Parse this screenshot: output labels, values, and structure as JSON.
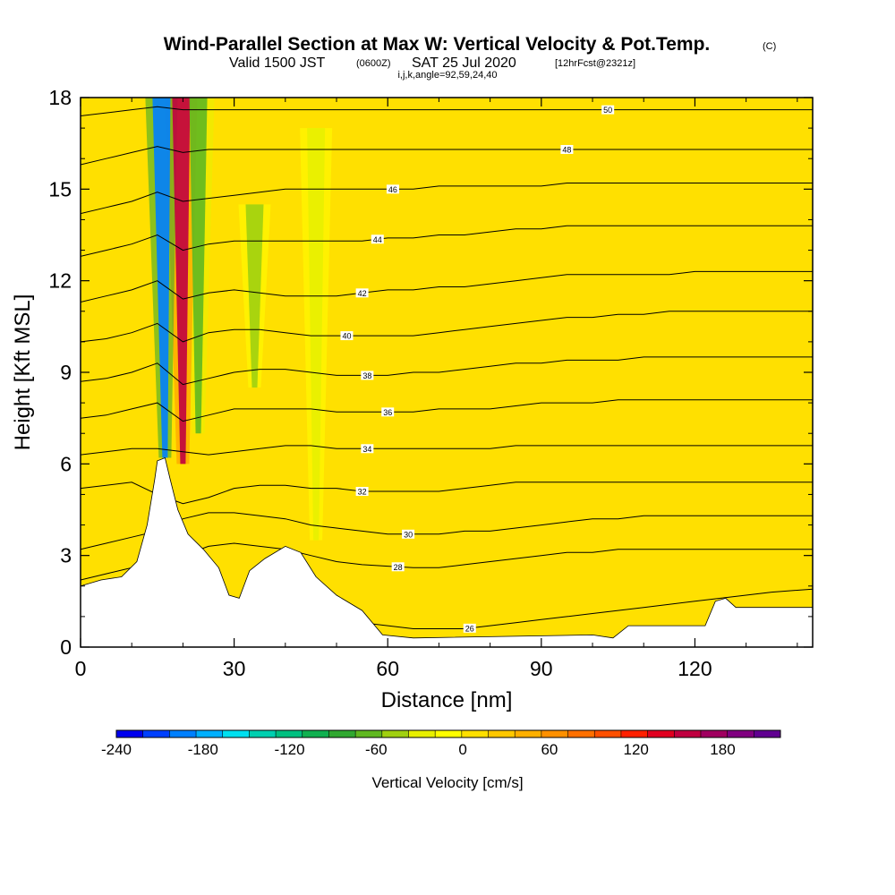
{
  "title": {
    "main": "Wind-Parallel Section at Max W: Vertical Velocity & Pot.Temp.",
    "main_units": "(C)",
    "line2_prefix": "Valid 1500 JST",
    "line2_zulu": "(0600Z)",
    "line2_date": "SAT 25 Jul 2020",
    "line2_fcst": "[12hrFcst@2321z]",
    "line3": "i,j,k,angle=92,59,24,40"
  },
  "chart_data": {
    "type": "heatmap",
    "xlabel": "Distance [nm]",
    "ylabel": "Height [Kft MSL]",
    "xlim": [
      0,
      143
    ],
    "ylim": [
      0,
      18
    ],
    "x_ticks": [
      0,
      30,
      60,
      90,
      120
    ],
    "y_ticks": [
      0,
      3,
      6,
      9,
      12,
      15,
      18
    ],
    "x_tick_labels": [
      "0",
      "30",
      "60",
      "90",
      "120"
    ],
    "y_tick_labels": [
      "0",
      "3",
      "6",
      "9",
      "12",
      "15",
      "18"
    ],
    "grid": false,
    "colorbar": {
      "title": "Vertical Velocity [cm/s]",
      "min": -240,
      "max": 220,
      "tick_values": [
        -240,
        -180,
        -120,
        -60,
        0,
        60,
        120,
        180
      ],
      "tick_labels": [
        "-240",
        "-180",
        "-120",
        "-60",
        "0",
        "60",
        "120",
        "180"
      ],
      "colors": [
        "#0000ee",
        "#0040ff",
        "#0080ff",
        "#00b0ff",
        "#00e0f0",
        "#00d0b0",
        "#00c080",
        "#10b050",
        "#30a830",
        "#60b820",
        "#a0d010",
        "#e8f000",
        "#ffff00",
        "#ffe000",
        "#ffc800",
        "#ffb000",
        "#ff9000",
        "#ff7000",
        "#ff5000",
        "#ff2000",
        "#e00020",
        "#c00040",
        "#a00060",
        "#800080",
        "#600090"
      ]
    },
    "background_velocity_cm_s": 5,
    "velocity_features": [
      {
        "name": "downdraft core",
        "x": 16.5,
        "y_bottom": 6.2,
        "y_top": 18,
        "value": -200
      },
      {
        "name": "updraft core",
        "x": 20,
        "y_bottom": 6.0,
        "y_top": 18,
        "value": 160
      },
      {
        "name": "downdraft band",
        "x": 23,
        "y_bottom": 7,
        "y_top": 18,
        "value": -60
      },
      {
        "name": "downdraft band",
        "x": 34,
        "y_bottom": 8.5,
        "y_top": 14.5,
        "value": -40
      },
      {
        "name": "downdraft band",
        "x": 46,
        "y_bottom": 3.5,
        "y_top": 17,
        "value": -30
      }
    ],
    "terrain_height_kft": [
      [
        0,
        2.0
      ],
      [
        4,
        2.2
      ],
      [
        8,
        2.3
      ],
      [
        11,
        2.8
      ],
      [
        13,
        4.0
      ],
      [
        14.5,
        5.5
      ],
      [
        15,
        6.1
      ],
      [
        16.5,
        6.2
      ],
      [
        17.5,
        5.5
      ],
      [
        19,
        4.5
      ],
      [
        21,
        3.7
      ],
      [
        24,
        3.2
      ],
      [
        27,
        2.6
      ],
      [
        29,
        1.7
      ],
      [
        31,
        1.6
      ],
      [
        33,
        2.5
      ],
      [
        36,
        2.9
      ],
      [
        40,
        3.3
      ],
      [
        43,
        3.1
      ],
      [
        46,
        2.3
      ],
      [
        50,
        1.7
      ],
      [
        55,
        1.2
      ],
      [
        59,
        0.4
      ],
      [
        65,
        0.3
      ],
      [
        100,
        0.4
      ],
      [
        104,
        0.3
      ],
      [
        107,
        0.7
      ],
      [
        122,
        0.7
      ],
      [
        124,
        1.5
      ],
      [
        126,
        1.6
      ],
      [
        128,
        1.3
      ],
      [
        135,
        1.3
      ],
      [
        143,
        1.3
      ]
    ],
    "pot_temp_contours": [
      {
        "value": 26,
        "label": "26",
        "label_x": 76,
        "y": [
          0.4,
          0.5,
          0.6,
          0.7,
          0.9,
          1.15,
          1.3,
          1.4,
          1.35,
          1.2,
          1.0,
          0.8,
          0.7,
          0.6,
          0.6,
          0.6,
          0.7,
          0.8,
          0.9,
          1.0,
          1.1,
          1.2,
          1.3,
          1.4,
          1.5,
          1.6,
          1.7,
          1.8,
          1.9
        ]
      },
      {
        "value": 28,
        "label": "28",
        "label_x": 62,
        "y": [
          2.2,
          2.4,
          2.6,
          2.8,
          3.0,
          3.3,
          3.4,
          3.3,
          3.2,
          3.0,
          2.8,
          2.7,
          2.65,
          2.6,
          2.6,
          2.7,
          2.8,
          2.9,
          3.0,
          3.1,
          3.1,
          3.2,
          3.2,
          3.2,
          3.2,
          3.2,
          3.2,
          3.2,
          3.2
        ]
      },
      {
        "value": 30,
        "label": "30",
        "label_x": 64,
        "y": [
          3.2,
          3.4,
          3.6,
          3.8,
          4.2,
          4.4,
          4.4,
          4.3,
          4.2,
          4.0,
          3.9,
          3.8,
          3.7,
          3.7,
          3.7,
          3.8,
          3.8,
          3.9,
          4.0,
          4.1,
          4.2,
          4.2,
          4.3,
          4.3,
          4.3,
          4.3,
          4.3,
          4.3,
          4.3
        ]
      },
      {
        "value": 32,
        "label": "32",
        "label_x": 55,
        "y": [
          5.2,
          5.3,
          5.4,
          5.0,
          4.7,
          4.9,
          5.2,
          5.3,
          5.3,
          5.2,
          5.2,
          5.1,
          5.1,
          5.1,
          5.1,
          5.2,
          5.3,
          5.4,
          5.4,
          5.4,
          5.4,
          5.4,
          5.4,
          5.4,
          5.4,
          5.4,
          5.4,
          5.4,
          5.4
        ]
      },
      {
        "value": 34,
        "label": "34",
        "label_x": 56,
        "y": [
          6.3,
          6.4,
          6.5,
          6.5,
          6.4,
          6.3,
          6.4,
          6.5,
          6.6,
          6.6,
          6.5,
          6.5,
          6.5,
          6.5,
          6.5,
          6.5,
          6.5,
          6.6,
          6.6,
          6.6,
          6.6,
          6.6,
          6.6,
          6.6,
          6.6,
          6.6,
          6.6,
          6.6,
          6.6
        ]
      },
      {
        "value": 36,
        "label": "36",
        "label_x": 60,
        "y": [
          7.5,
          7.6,
          7.8,
          8.0,
          7.4,
          7.6,
          7.8,
          7.8,
          7.8,
          7.8,
          7.7,
          7.7,
          7.7,
          7.7,
          7.8,
          7.8,
          7.8,
          7.9,
          8.0,
          8.0,
          8.0,
          8.1,
          8.1,
          8.1,
          8.1,
          8.1,
          8.1,
          8.1,
          8.1
        ]
      },
      {
        "value": 38,
        "label": "38",
        "label_x": 56,
        "y": [
          8.7,
          8.8,
          9.0,
          9.3,
          8.6,
          8.8,
          9.0,
          9.1,
          9.1,
          9.0,
          8.9,
          8.9,
          8.9,
          9.0,
          9.0,
          9.1,
          9.2,
          9.3,
          9.3,
          9.4,
          9.4,
          9.4,
          9.5,
          9.5,
          9.5,
          9.5,
          9.5,
          9.5,
          9.5
        ]
      },
      {
        "value": 40,
        "label": "40",
        "label_x": 52,
        "y": [
          10.0,
          10.1,
          10.3,
          10.6,
          10.0,
          10.3,
          10.4,
          10.4,
          10.3,
          10.2,
          10.2,
          10.2,
          10.2,
          10.2,
          10.3,
          10.4,
          10.5,
          10.6,
          10.7,
          10.8,
          10.8,
          10.9,
          10.9,
          11.0,
          11.0,
          11.0,
          11.0,
          11.0,
          11.0
        ]
      },
      {
        "value": 42,
        "label": "42",
        "label_x": 55,
        "y": [
          11.3,
          11.5,
          11.7,
          12.0,
          11.4,
          11.6,
          11.7,
          11.6,
          11.5,
          11.5,
          11.5,
          11.6,
          11.7,
          11.7,
          11.8,
          11.8,
          11.9,
          12.0,
          12.1,
          12.2,
          12.2,
          12.2,
          12.2,
          12.2,
          12.3,
          12.3,
          12.3,
          12.3,
          12.3
        ]
      },
      {
        "value": 44,
        "label": "44",
        "label_x": 58,
        "y": [
          12.8,
          13.0,
          13.2,
          13.5,
          13.0,
          13.2,
          13.3,
          13.3,
          13.3,
          13.3,
          13.3,
          13.3,
          13.4,
          13.4,
          13.5,
          13.5,
          13.6,
          13.7,
          13.7,
          13.8,
          13.8,
          13.8,
          13.8,
          13.8,
          13.8,
          13.8,
          13.8,
          13.8,
          13.8
        ]
      },
      {
        "value": 46,
        "label": "46",
        "label_x": 61,
        "y": [
          14.2,
          14.4,
          14.6,
          14.9,
          14.6,
          14.7,
          14.8,
          14.9,
          15.0,
          15.0,
          15.0,
          15.0,
          15.0,
          15.0,
          15.1,
          15.1,
          15.1,
          15.1,
          15.1,
          15.2,
          15.2,
          15.2,
          15.2,
          15.2,
          15.2,
          15.2,
          15.2,
          15.2,
          15.2
        ]
      },
      {
        "value": 48,
        "label": "48",
        "label_x": 95,
        "y": [
          15.8,
          16.0,
          16.2,
          16.4,
          16.2,
          16.3,
          16.3,
          16.3,
          16.3,
          16.3,
          16.3,
          16.3,
          16.3,
          16.3,
          16.3,
          16.3,
          16.3,
          16.3,
          16.3,
          16.3,
          16.3,
          16.3,
          16.3,
          16.3,
          16.3,
          16.3,
          16.3,
          16.3,
          16.3
        ]
      },
      {
        "value": 50,
        "label": "50",
        "label_x": 103,
        "y": [
          17.4,
          17.5,
          17.6,
          17.7,
          17.6,
          17.6,
          17.6,
          17.6,
          17.6,
          17.6,
          17.6,
          17.6,
          17.6,
          17.6,
          17.6,
          17.6,
          17.6,
          17.6,
          17.6,
          17.6,
          17.6,
          17.6,
          17.6,
          17.6,
          17.6,
          17.6,
          17.6,
          17.6,
          17.6
        ]
      }
    ],
    "contour_y_sample_x": [
      0,
      5,
      10,
      15,
      20,
      25,
      30,
      35,
      40,
      45,
      50,
      55,
      60,
      65,
      70,
      75,
      80,
      85,
      90,
      95,
      100,
      105,
      110,
      115,
      120,
      125,
      130,
      135,
      143
    ]
  }
}
